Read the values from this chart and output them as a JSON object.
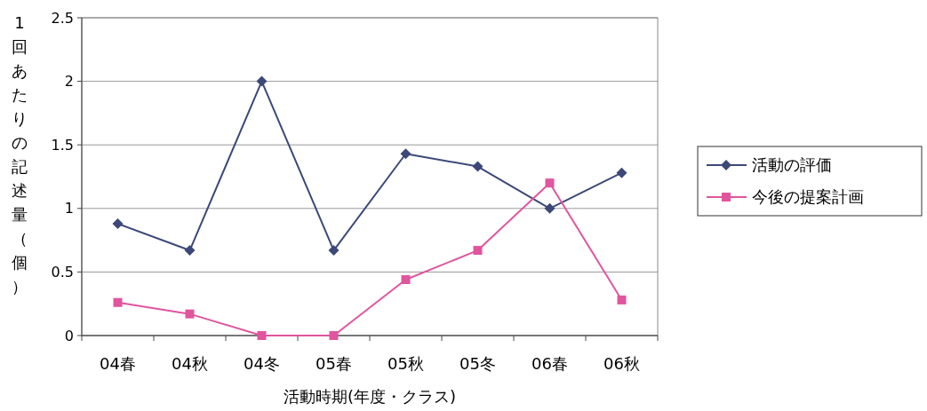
{
  "chart_data": {
    "type": "line",
    "xlabel": "活動時期(年度・クラス)",
    "ylabel": "1回あたりの記述量（個）",
    "categories": [
      "04春",
      "04秋",
      "04冬",
      "05春",
      "05秋",
      "05冬",
      "06春",
      "06秋"
    ],
    "series": [
      {
        "name": "活動の評価",
        "color": "#3c4878",
        "marker": "diamond",
        "values": [
          0.88,
          0.67,
          2.0,
          0.67,
          1.43,
          1.33,
          1.0,
          1.28
        ]
      },
      {
        "name": "今後の提案計画",
        "color": "#e0559e",
        "marker": "square",
        "values": [
          0.26,
          0.17,
          0,
          0,
          0.44,
          0.67,
          1.2,
          0.28
        ]
      }
    ],
    "ylim": [
      0,
      2.5
    ],
    "yticks": [
      0,
      0.5,
      1,
      1.5,
      2,
      2.5
    ],
    "grid": "y",
    "legend": "right",
    "line_style": "solid"
  }
}
